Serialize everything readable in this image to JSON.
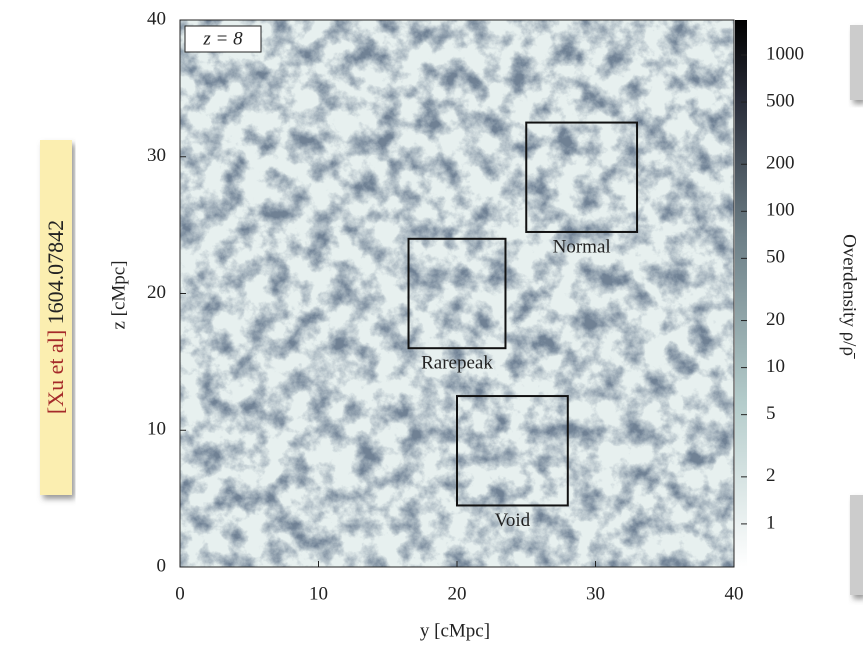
{
  "side_note": {
    "source": "[Xu et al]",
    "id": "1604.07842"
  },
  "chart_data": {
    "type": "map",
    "annotation": "z = 8",
    "xlabel": "y [cMpc]",
    "ylabel": "z [cMpc]",
    "xlim": [
      0,
      40
    ],
    "ylim": [
      0,
      40
    ],
    "xticks": [
      0,
      10,
      20,
      30,
      40
    ],
    "yticks": [
      0,
      10,
      20,
      30,
      40
    ],
    "colorbar": {
      "label": "Overdensity ρ/ρ̄",
      "log": true,
      "lim": [
        0.53,
        1675
      ],
      "ticks": [
        1,
        2,
        5,
        10,
        20,
        50,
        100,
        200,
        500,
        1000
      ]
    },
    "regions": [
      {
        "name": "Normal",
        "x": [
          25,
          33
        ],
        "y": [
          24.5,
          32.5
        ]
      },
      {
        "name": "Rarepeak",
        "x": [
          16.5,
          23.5
        ],
        "y": [
          16,
          24
        ]
      },
      {
        "name": "Void",
        "x": [
          20,
          28
        ],
        "y": [
          4.5,
          12.5
        ]
      }
    ]
  }
}
